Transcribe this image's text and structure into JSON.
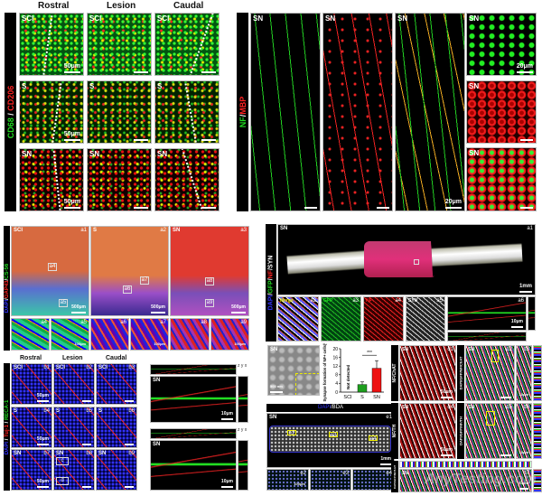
{
  "panelA": {
    "stain": [
      "CD68",
      " / ",
      "CD206"
    ],
    "columns": [
      "Rostral",
      "Lesion",
      "Caudal"
    ],
    "rows": [
      "SCI",
      "S",
      "SN"
    ],
    "scale": "50μm"
  },
  "panelB": {
    "stain": [
      "NF",
      "/",
      "MBP"
    ],
    "group": "SN",
    "scale": "20μm"
  },
  "panelC": {
    "stain": [
      "DAPI",
      "/",
      "GAP43",
      "/",
      "CS-56"
    ],
    "groups": [
      "SCI",
      "S",
      "SN"
    ],
    "tags": [
      "a1",
      "a2",
      "a3"
    ],
    "boxes": [
      "a4",
      "a5",
      "a6",
      "a7",
      "a8",
      "a9"
    ],
    "subtags": [
      "a4",
      "a5",
      "a6",
      "a7",
      "a8",
      "a9"
    ],
    "scale": "500μm",
    "subscale": "100μm"
  },
  "panelD": {
    "stain": [
      "DAPI",
      "/",
      "GFP",
      "/",
      "NF",
      "/",
      "SYN"
    ],
    "group": "SN",
    "tags": [
      "a1",
      "a2",
      "a3",
      "a4",
      "a5",
      "a6"
    ],
    "subs": [
      "Merge",
      "GFP",
      "NF",
      "SYN"
    ],
    "scale": "1mm",
    "subscale": "10μm",
    "box": "a2"
  },
  "panelE": {
    "stain": [
      "DAPI",
      " / ",
      "Tuj-1",
      " / ",
      "RECA-1"
    ],
    "columns": [
      "Rostral",
      "Lesion",
      "Caudal"
    ],
    "rows": [
      "SCI",
      "S",
      "SN"
    ],
    "tags": [
      "b1",
      "b2",
      "b3",
      "b4",
      "b5",
      "b6",
      "b7",
      "b8",
      "b9"
    ],
    "boxes": [
      "c",
      "d"
    ],
    "scale": "50μm"
  },
  "panelF": {
    "group": "SN",
    "scale": "10μm",
    "axes": [
      "z",
      "y",
      "x"
    ]
  },
  "panelG": {
    "group": "SN",
    "scale": "500 nm"
  },
  "chart_data": {
    "type": "bar",
    "categories": [
      "SCI",
      "S",
      "SN"
    ],
    "values": [
      0,
      3.5,
      11.0
    ],
    "errors": [
      0,
      1.2,
      3.5
    ],
    "colors": [
      "#1e9e1e",
      "#1e9e1e",
      "#ee1111"
    ],
    "ylabel": "Synapse formation of NF+ cells(%)",
    "ylim": [
      0,
      20
    ],
    "yticks": [
      0,
      4,
      8,
      12,
      16,
      20
    ],
    "annotations": {
      "not_detected": "Not detected",
      "significance": "***"
    }
  },
  "panelH": {
    "stain": [
      "DAPI",
      "/",
      "BDA"
    ],
    "group": "SN",
    "tag": "e1",
    "boxes": [
      "e2",
      "e3",
      "e4"
    ],
    "scale": "1mm",
    "subscale": "100μm"
  },
  "panelI": {
    "stains": [
      "NF/ChAT",
      "DAPI/GFP/NF/ChAT",
      "NF/TH",
      "DAPI/GFP/NF/TH",
      "DAPI/GFP/NF/5-HT"
    ],
    "group": "SN",
    "tags": [
      "d1",
      "d2",
      "d3",
      "d4",
      "d5",
      "d6",
      "d7"
    ],
    "scale": "50μm",
    "subscale": "10μm"
  },
  "watermark": "AnyTesting.com"
}
